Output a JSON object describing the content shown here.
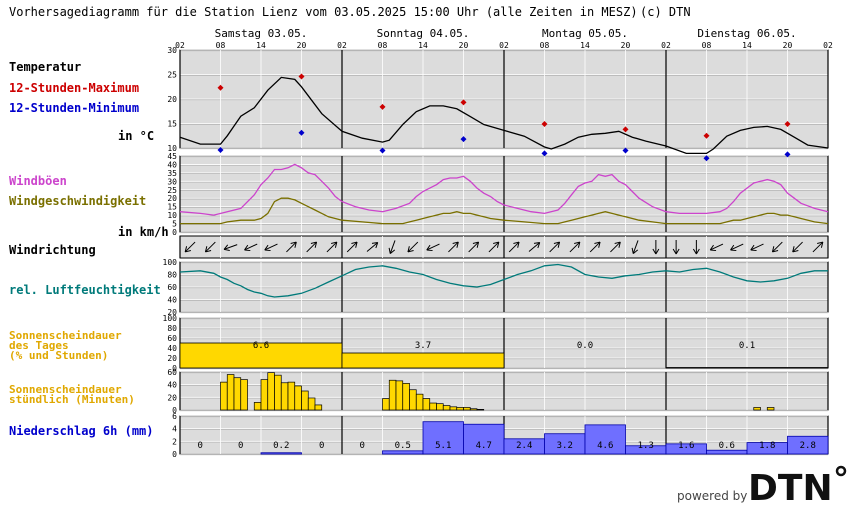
{
  "header": {
    "title": "Vorhersagediagramm für die Station Lienz vom 03.05.2025 15:00 Uhr (alle Zeiten in MESZ)",
    "copyright": "(c) DTN"
  },
  "days": [
    "Samstag 03.05.",
    "Sonntag 04.05.",
    "Montag 05.05.",
    "Dienstag 06.05."
  ],
  "hour_ticks": [
    "02",
    "08",
    "14",
    "20",
    "02",
    "08",
    "14",
    "20",
    "02",
    "08",
    "14",
    "20",
    "02",
    "08",
    "14",
    "20",
    "02"
  ],
  "labels": {
    "temperatur": "Temperatur",
    "max": "12-Stunden-Maximum",
    "min": "12-Stunden-Minimum",
    "temp_unit": "in °C",
    "windboeen": "Windböen",
    "windgeschw": "Windgeschwindigkeit",
    "wind_unit": "in km/h",
    "windrichtung": "Windrichtung",
    "feuchte": "rel. Luftfeuchtigkeit",
    "sonne_tag_1": "Sonnenscheindauer",
    "sonne_tag_2": "des Tages",
    "sonne_tag_3": "(% und Stunden)",
    "sonne_std_1": "Sonnenscheindauer",
    "sonne_std_2": "stündlich (Minuten)",
    "niederschlag": "Niederschlag 6h (mm)"
  },
  "footer": {
    "powered_by": "powered by",
    "brand": "DTN"
  },
  "colors": {
    "temp": "#000000",
    "max": "#cc0000",
    "min": "#0000cc",
    "gust": "#cc44cc",
    "wind": "#7a7000",
    "humidity": "#007a7a",
    "sun": "#ffd800",
    "precip": "#6f6fff",
    "panel_bg": "#dcdcdc"
  },
  "chart_data": [
    {
      "type": "line",
      "name": "temperature",
      "ylabel": "in °C",
      "ylim": [
        10,
        30
      ],
      "yticks": [
        10,
        15,
        20,
        25,
        30
      ],
      "x_hours": [
        0,
        3,
        6,
        7,
        9,
        11,
        13,
        15,
        17,
        18,
        21,
        24,
        27,
        30,
        31,
        33,
        35,
        37,
        39,
        41,
        43,
        45,
        48,
        51,
        54,
        55,
        57,
        59,
        61,
        63,
        65,
        67,
        69,
        72,
        75,
        78,
        79,
        81,
        83,
        85,
        87,
        89,
        91,
        93,
        96
      ],
      "values": [
        12.2,
        10.8,
        10.8,
        12.5,
        16.5,
        18.2,
        21.8,
        24.4,
        24.0,
        22.5,
        17.0,
        13.4,
        12.0,
        11.2,
        11.6,
        14.8,
        17.4,
        18.6,
        18.6,
        18.0,
        16.4,
        14.8,
        13.6,
        12.4,
        10.2,
        9.8,
        10.8,
        12.2,
        12.8,
        13.0,
        13.4,
        12.2,
        11.4,
        10.4,
        8.9,
        8.9,
        9.8,
        12.4,
        13.6,
        14.2,
        14.4,
        13.8,
        12.2,
        10.6,
        10.0
      ],
      "max_points": [
        {
          "h": 6,
          "v": 22.3
        },
        {
          "h": 18,
          "v": 24.6
        },
        {
          "h": 30,
          "v": 18.4
        },
        {
          "h": 42,
          "v": 19.3
        },
        {
          "h": 54,
          "v": 14.9
        },
        {
          "h": 66,
          "v": 13.8
        },
        {
          "h": 78,
          "v": 12.5
        },
        {
          "h": 90,
          "v": 14.9
        }
      ],
      "min_points": [
        {
          "h": 6,
          "v": 9.6
        },
        {
          "h": 18,
          "v": 13.1
        },
        {
          "h": 30,
          "v": 9.5
        },
        {
          "h": 42,
          "v": 11.8
        },
        {
          "h": 54,
          "v": 8.9
        },
        {
          "h": 66,
          "v": 9.5
        },
        {
          "h": 78,
          "v": 7.9
        },
        {
          "h": 90,
          "v": 8.7
        }
      ]
    },
    {
      "type": "line",
      "name": "wind",
      "ylabel": "in km/h",
      "ylim": [
        0,
        45
      ],
      "yticks": [
        0,
        5,
        10,
        15,
        20,
        25,
        30,
        35,
        40,
        45
      ],
      "series": [
        {
          "name": "Windböen",
          "x_hours": [
            0,
            3,
            5,
            7,
            9,
            11,
            12,
            13,
            14,
            15,
            16,
            17,
            18,
            19,
            20,
            21,
            22,
            23,
            24,
            26,
            28,
            30,
            32,
            34,
            35,
            36,
            37,
            38,
            39,
            40,
            41,
            42,
            43,
            44,
            45,
            46,
            47,
            48,
            50,
            52,
            54,
            56,
            57,
            58,
            59,
            60,
            61,
            62,
            63,
            64,
            65,
            66,
            67,
            68,
            70,
            72,
            74,
            76,
            78,
            80,
            81,
            82,
            83,
            84,
            85,
            86,
            87,
            88,
            89,
            90,
            91,
            92,
            94,
            96
          ],
          "values": [
            12,
            11,
            10,
            12,
            14,
            22,
            28,
            32,
            37,
            37,
            38,
            40,
            38,
            35,
            34,
            30,
            26,
            21,
            18,
            15,
            13,
            12,
            14,
            17,
            21,
            24,
            26,
            28,
            31,
            32,
            32,
            33,
            30,
            26,
            23,
            21,
            18,
            16,
            14,
            12,
            11,
            13,
            17,
            22,
            27,
            29,
            30,
            34,
            33,
            34,
            30,
            28,
            24,
            20,
            15,
            12,
            11,
            11,
            11,
            12,
            14,
            18,
            23,
            26,
            29,
            30,
            31,
            30,
            28,
            23,
            20,
            17,
            14,
            12
          ]
        },
        {
          "name": "Windgeschwindigkeit",
          "x_hours": [
            0,
            3,
            6,
            7,
            9,
            10,
            11,
            12,
            13,
            14,
            15,
            16,
            17,
            18,
            19,
            20,
            21,
            22,
            24,
            27,
            30,
            33,
            34,
            35,
            36,
            37,
            38,
            39,
            40,
            41,
            42,
            43,
            44,
            45,
            46,
            48,
            51,
            54,
            56,
            57,
            58,
            59,
            60,
            61,
            62,
            63,
            64,
            65,
            66,
            68,
            70,
            72,
            75,
            78,
            80,
            81,
            82,
            83,
            84,
            85,
            86,
            87,
            88,
            89,
            90,
            91,
            92,
            94,
            96
          ],
          "values": [
            5,
            5,
            5,
            6,
            7,
            7,
            7,
            8,
            11,
            18,
            20,
            20,
            19,
            17,
            15,
            13,
            11,
            9,
            7,
            6,
            5,
            5,
            6,
            7,
            8,
            9,
            10,
            11,
            11,
            12,
            11,
            11,
            10,
            9,
            8,
            7,
            6,
            5,
            5,
            6,
            7,
            8,
            9,
            10,
            11,
            12,
            11,
            10,
            9,
            7,
            6,
            5,
            5,
            5,
            5,
            6,
            7,
            7,
            8,
            9,
            10,
            11,
            11,
            10,
            10,
            9,
            8,
            6,
            5
          ]
        }
      ]
    },
    {
      "type": "table",
      "name": "wind_direction",
      "x_hours": [
        0,
        3,
        6,
        9,
        12,
        15,
        18,
        21,
        24,
        27,
        30,
        33,
        36,
        39,
        42,
        45,
        48,
        51,
        54,
        57,
        60,
        63,
        66,
        69,
        72,
        75,
        78,
        81,
        84,
        87,
        90,
        93
      ],
      "values_deg": [
        135,
        135,
        160,
        155,
        155,
        315,
        315,
        315,
        315,
        320,
        110,
        135,
        155,
        315,
        315,
        315,
        315,
        320,
        315,
        315,
        315,
        315,
        110,
        90,
        90,
        90,
        155,
        155,
        155,
        135,
        135,
        315
      ]
    },
    {
      "type": "line",
      "name": "humidity",
      "ylim": [
        20,
        100
      ],
      "yticks": [
        20,
        40,
        60,
        80,
        100
      ],
      "x_hours": [
        0,
        3,
        5,
        6,
        7,
        8,
        9,
        10,
        11,
        12,
        13,
        14,
        16,
        18,
        20,
        22,
        24,
        26,
        28,
        30,
        32,
        34,
        36,
        38,
        40,
        42,
        44,
        46,
        48,
        50,
        52,
        54,
        56,
        58,
        60,
        62,
        64,
        66,
        68,
        70,
        72,
        74,
        76,
        78,
        80,
        82,
        84,
        86,
        88,
        90,
        92,
        94,
        96
      ],
      "values": [
        84,
        86,
        82,
        76,
        72,
        66,
        62,
        56,
        52,
        50,
        46,
        44,
        46,
        50,
        58,
        68,
        78,
        88,
        92,
        94,
        90,
        84,
        80,
        72,
        66,
        62,
        60,
        64,
        72,
        80,
        86,
        94,
        96,
        92,
        80,
        76,
        74,
        78,
        80,
        84,
        86,
        84,
        88,
        90,
        84,
        76,
        70,
        68,
        70,
        74,
        82,
        86,
        86
      ]
    },
    {
      "type": "bar",
      "name": "daily_sunshine",
      "ylim": [
        0,
        100
      ],
      "yticks": [
        0,
        20,
        40,
        60,
        80,
        100
      ],
      "categories": [
        "03.05.",
        "04.05.",
        "05.05.",
        "06.05."
      ],
      "percent": [
        50,
        30,
        0,
        1
      ],
      "hours_labels": [
        "6.6",
        "3.7",
        "0.0",
        "0.1"
      ]
    },
    {
      "type": "bar",
      "name": "hourly_sunshine",
      "ylim": [
        0,
        60
      ],
      "yticks": [
        0,
        20,
        40,
        60
      ],
      "x_hours": [
        6,
        7,
        8,
        9,
        11,
        12,
        13,
        14,
        15,
        16,
        17,
        18,
        19,
        20,
        30,
        31,
        32,
        33,
        34,
        35,
        36,
        37,
        38,
        39,
        40,
        41,
        42,
        43,
        44,
        85,
        87
      ],
      "values": [
        44,
        56,
        51,
        48,
        12,
        48,
        59,
        55,
        43,
        44,
        38,
        30,
        19,
        8,
        18,
        47,
        46,
        42,
        32,
        25,
        18,
        11,
        10,
        7,
        5,
        4,
        4,
        2,
        1,
        4,
        4
      ]
    },
    {
      "type": "bar",
      "name": "precipitation_6h",
      "ylim": [
        0,
        6
      ],
      "yticks": [
        0,
        2,
        4,
        6
      ],
      "x_hours": [
        0,
        6,
        12,
        18,
        24,
        30,
        36,
        42,
        48,
        54,
        60,
        66,
        72,
        78,
        84,
        90
      ],
      "values": [
        0,
        0,
        0.2,
        0,
        0,
        0.5,
        5.1,
        4.7,
        2.4,
        3.2,
        4.6,
        1.3,
        1.6,
        0.6,
        1.8,
        2.8
      ],
      "labels": [
        "0",
        "0",
        "0.2",
        "0",
        "0",
        "0.5",
        "5.1",
        "4.7",
        "2.4",
        "3.2",
        "4.6",
        "1.3",
        "1.6",
        "0.6",
        "1.8",
        "2.8"
      ]
    }
  ]
}
